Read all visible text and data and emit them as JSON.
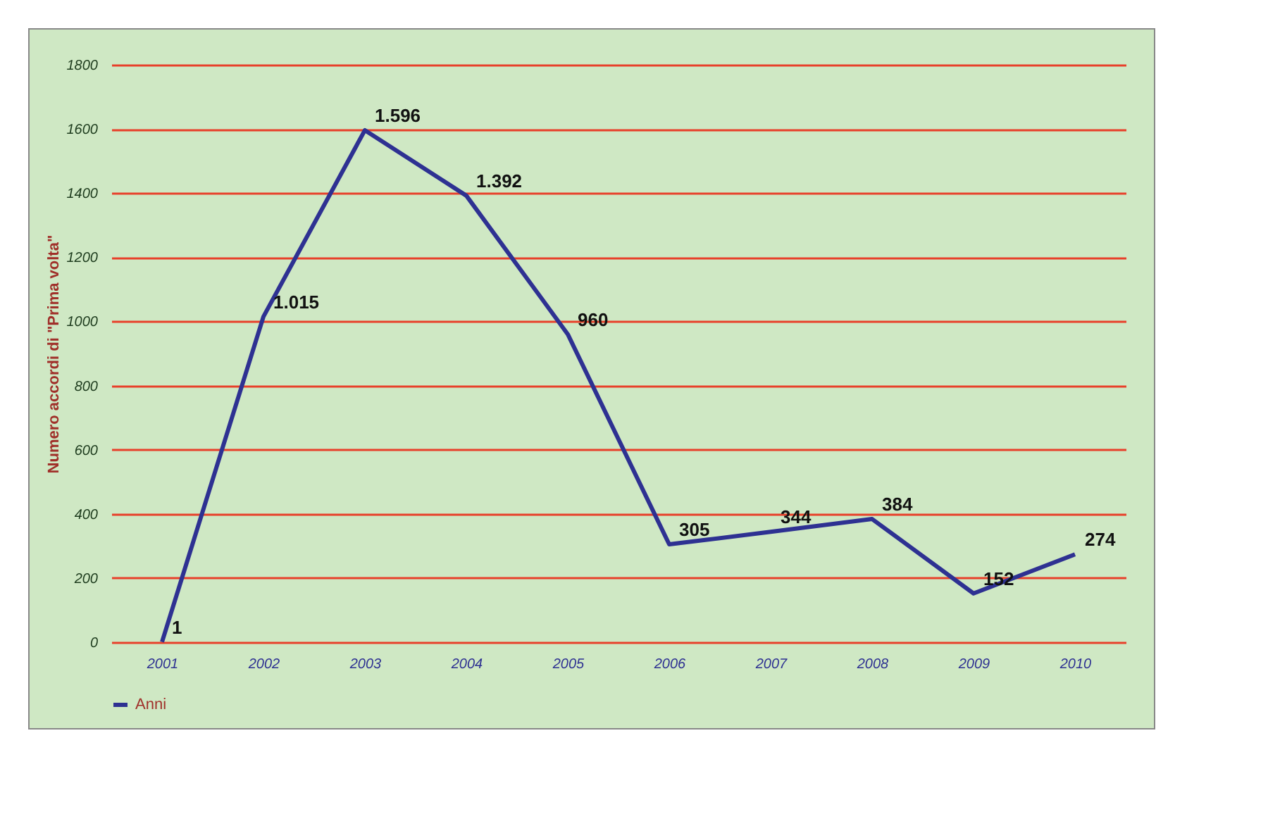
{
  "chart_data": {
    "type": "line",
    "ylabel": "Numero accordi di \"Prima volta\"",
    "categories": [
      "2001",
      "2002",
      "2003",
      "2004",
      "2005",
      "2006",
      "2007",
      "2008",
      "2009",
      "2010"
    ],
    "series": [
      {
        "name": "Anni",
        "color": "#2e3192",
        "values": [
          1,
          1015,
          1596,
          1392,
          960,
          305,
          344,
          384,
          152,
          274
        ],
        "value_labels": [
          "1",
          "1.015",
          "1.596",
          "1.392",
          "960",
          "305",
          "344",
          "384",
          "152",
          "274"
        ]
      }
    ],
    "ylim": [
      0,
      1800
    ],
    "yticks": [
      0,
      200,
      400,
      600,
      800,
      1000,
      1200,
      1400,
      1600,
      1800
    ],
    "grid": "y",
    "legend": "bottom",
    "marker": "none"
  }
}
